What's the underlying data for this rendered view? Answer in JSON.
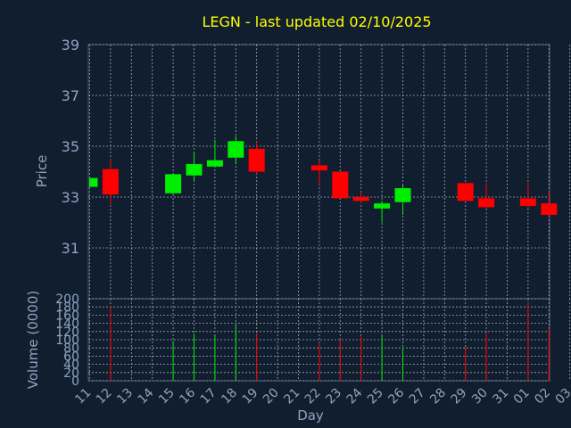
{
  "chart_data": {
    "type": "candlestick",
    "title": "LEGN - last updated 02/10/2025",
    "price_panel": {
      "ylabel": "Price",
      "ylim": [
        29,
        39
      ],
      "yticks": [
        "31",
        "33",
        "35",
        "37",
        "39"
      ],
      "grid": true
    },
    "volume_panel": {
      "ylabel": "Volume (0000)",
      "ylim": [
        0,
        200
      ],
      "yticks": [
        "0",
        "20",
        "40",
        "60",
        "80",
        "100",
        "120",
        "140",
        "160",
        "180",
        "200"
      ],
      "grid": true
    },
    "xlabel": "Day",
    "x_ticks": [
      "11",
      "12",
      "13",
      "14",
      "15",
      "16",
      "17",
      "18",
      "19",
      "20",
      "21",
      "22",
      "23",
      "24",
      "25",
      "26",
      "27",
      "28",
      "29",
      "30",
      "31",
      "01",
      "02",
      "03"
    ],
    "candles": [
      {
        "day": "11",
        "open": 33.4,
        "close": 33.75,
        "high": 33.75,
        "low": 33.4,
        "volume": null
      },
      {
        "day": "12",
        "open": 34.1,
        "close": 33.1,
        "high": 34.5,
        "low": 32.7,
        "volume": 183
      },
      {
        "day": "15",
        "open": 33.15,
        "close": 33.9,
        "high": 33.9,
        "low": 33.1,
        "volume": 97
      },
      {
        "day": "16",
        "open": 33.85,
        "close": 34.3,
        "high": 34.75,
        "low": 33.65,
        "volume": 115
      },
      {
        "day": "17",
        "open": 34.2,
        "close": 34.45,
        "high": 35.25,
        "low": 34.2,
        "volume": 113
      },
      {
        "day": "18",
        "open": 34.55,
        "close": 35.2,
        "high": 35.4,
        "low": 34.3,
        "volume": 137
      },
      {
        "day": "19",
        "open": 34.9,
        "close": 34.0,
        "high": 35.2,
        "low": 33.9,
        "volume": 116
      },
      {
        "day": "22",
        "open": 34.25,
        "close": 34.05,
        "high": 34.45,
        "low": 33.5,
        "volume": 93
      },
      {
        "day": "23",
        "open": 34.0,
        "close": 32.95,
        "high": 34.0,
        "low": 32.95,
        "volume": 100
      },
      {
        "day": "24",
        "open": 33.0,
        "close": 32.85,
        "high": 33.2,
        "low": 32.75,
        "volume": 108
      },
      {
        "day": "25",
        "open": 32.55,
        "close": 32.75,
        "high": 32.85,
        "low": 32.0,
        "volume": 112
      },
      {
        "day": "26",
        "open": 32.8,
        "close": 33.35,
        "high": 33.45,
        "low": 32.3,
        "volume": 78
      },
      {
        "day": "29",
        "open": 33.55,
        "close": 32.85,
        "high": 33.55,
        "low": 32.85,
        "volume": 82
      },
      {
        "day": "30",
        "open": 32.95,
        "close": 32.6,
        "high": 33.55,
        "low": 32.55,
        "volume": 116
      },
      {
        "day": "01",
        "open": 32.95,
        "close": 32.65,
        "high": 33.55,
        "low": 32.55,
        "volume": 192
      },
      {
        "day": "02",
        "open": 32.75,
        "close": 32.3,
        "high": 33.25,
        "low": 32.2,
        "volume": 128
      }
    ],
    "colors": {
      "background": "#111e30",
      "frame": "#4d5e74",
      "grid": "#9aa7b5",
      "title": "#ffff00",
      "label": "#8fa3c0",
      "up": "#00ee00",
      "down": "#ff0000"
    }
  }
}
